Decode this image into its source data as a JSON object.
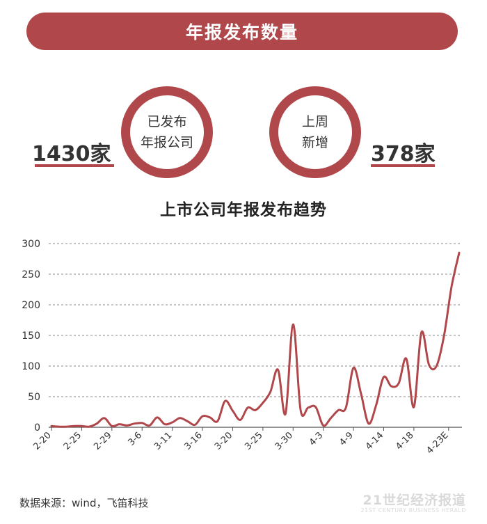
{
  "banner": {
    "title": "年报发布数量"
  },
  "stats": {
    "published_label_1": "已发布",
    "published_label_2": "年报公司",
    "published_value": "1430家",
    "weekly_label_1": "上周",
    "weekly_label_2": "新增",
    "weekly_value": "378家"
  },
  "footer": {
    "source": "数据来源：wind，飞笛科技",
    "brand_cn": "21世纪经济报道",
    "brand_en": "21ST CENTURY BUSINESS HERALD"
  },
  "colors": {
    "accent": "#b0474a"
  },
  "chart_data": {
    "type": "line",
    "title": "上市公司年报发布趋势",
    "xlabel": "",
    "ylabel": "",
    "ylim": [
      0,
      300
    ],
    "yticks": [
      0,
      50,
      100,
      150,
      200,
      250,
      300
    ],
    "grid": true,
    "x_tick_labels": [
      "2-20",
      "2-25",
      "2-29",
      "3-6",
      "3-11",
      "3-16",
      "3-20",
      "3-25",
      "3-30",
      "4-3",
      "4-9",
      "4-14",
      "4-18",
      "4-23E"
    ],
    "x_tick_positions": [
      0,
      4,
      8,
      12,
      16,
      20,
      24,
      28,
      32,
      36,
      40,
      44,
      48,
      52.6
    ],
    "series": [
      {
        "x": [
          0,
          1,
          2,
          3,
          4,
          5,
          6,
          7,
          8,
          9,
          10,
          11,
          12,
          13,
          14,
          15,
          16,
          17,
          18,
          19,
          20,
          21,
          22,
          23,
          24,
          25,
          26,
          27,
          28,
          29,
          30,
          31,
          32,
          33,
          34,
          35,
          36,
          37,
          38,
          39,
          40,
          41,
          42,
          43,
          44,
          45,
          46,
          47,
          48,
          49,
          50,
          51,
          52,
          53,
          54
        ],
        "values": [
          2,
          1,
          1,
          2,
          2,
          1,
          6,
          15,
          2,
          5,
          3,
          6,
          7,
          3,
          16,
          5,
          8,
          15,
          10,
          4,
          18,
          16,
          10,
          43,
          27,
          12,
          32,
          28,
          40,
          58,
          94,
          22,
          168,
          28,
          32,
          33,
          3,
          15,
          28,
          32,
          97,
          55,
          6,
          36,
          82,
          67,
          72,
          112,
          33,
          155,
          102,
          100,
          150,
          230,
          285
        ]
      }
    ]
  }
}
